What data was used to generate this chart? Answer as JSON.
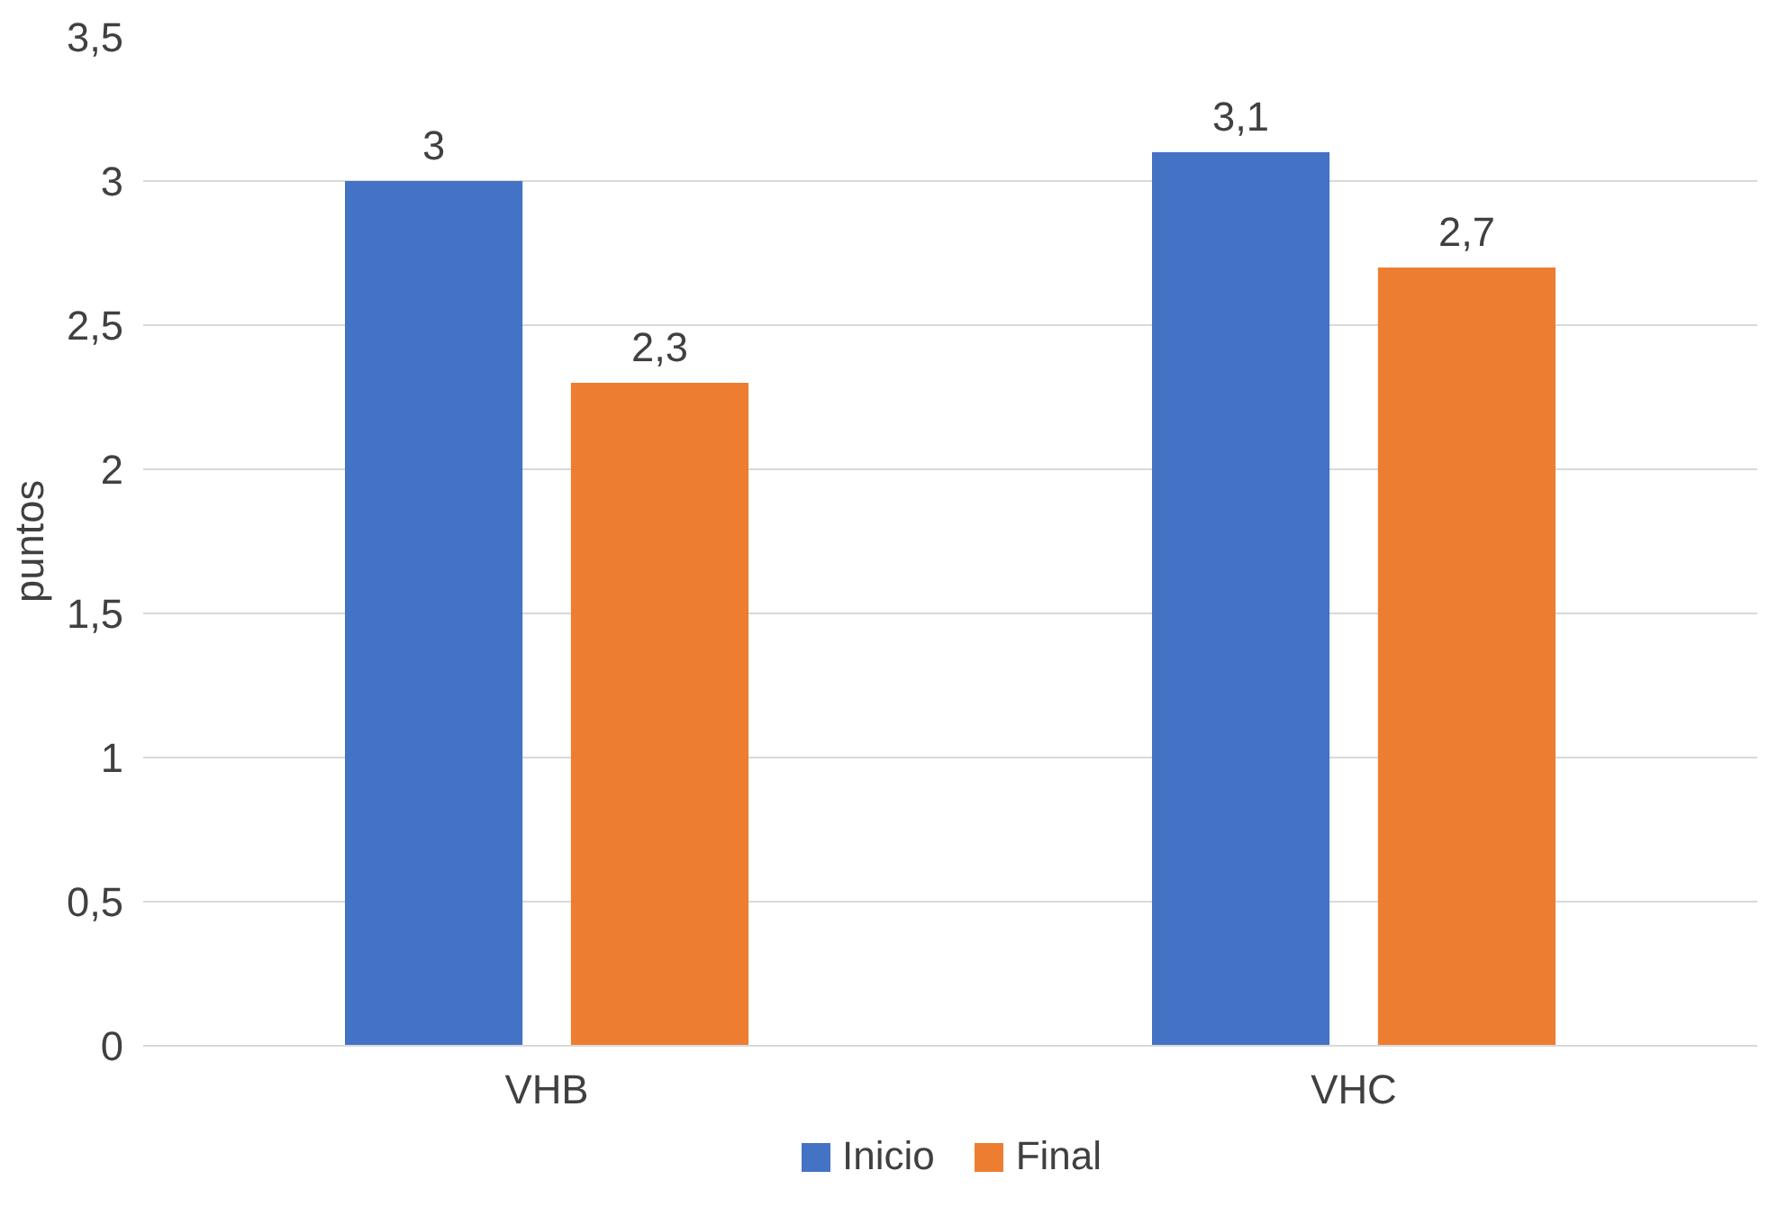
{
  "chart_data": {
    "type": "bar",
    "ylabel": "puntos",
    "categories": [
      "VHB",
      "VHC"
    ],
    "series": [
      {
        "name": "Inicio",
        "color": "#4472c4",
        "values": [
          3,
          3.1
        ],
        "value_labels": [
          "3",
          "3,1"
        ]
      },
      {
        "name": "Final",
        "color": "#ed7d31",
        "values": [
          2.3,
          2.7
        ],
        "value_labels": [
          "2,3",
          "2,7"
        ]
      }
    ],
    "ylim": [
      0,
      3.5
    ],
    "yticks": [
      {
        "value": 0,
        "label": "0"
      },
      {
        "value": 0.5,
        "label": "0,5"
      },
      {
        "value": 1,
        "label": "1"
      },
      {
        "value": 1.5,
        "label": "1,5"
      },
      {
        "value": 2,
        "label": "2"
      },
      {
        "value": 2.5,
        "label": "2,5"
      },
      {
        "value": 3,
        "label": "3"
      },
      {
        "value": 3.5,
        "label": "3,5"
      }
    ],
    "grid": "y",
    "legend": "bottom"
  }
}
